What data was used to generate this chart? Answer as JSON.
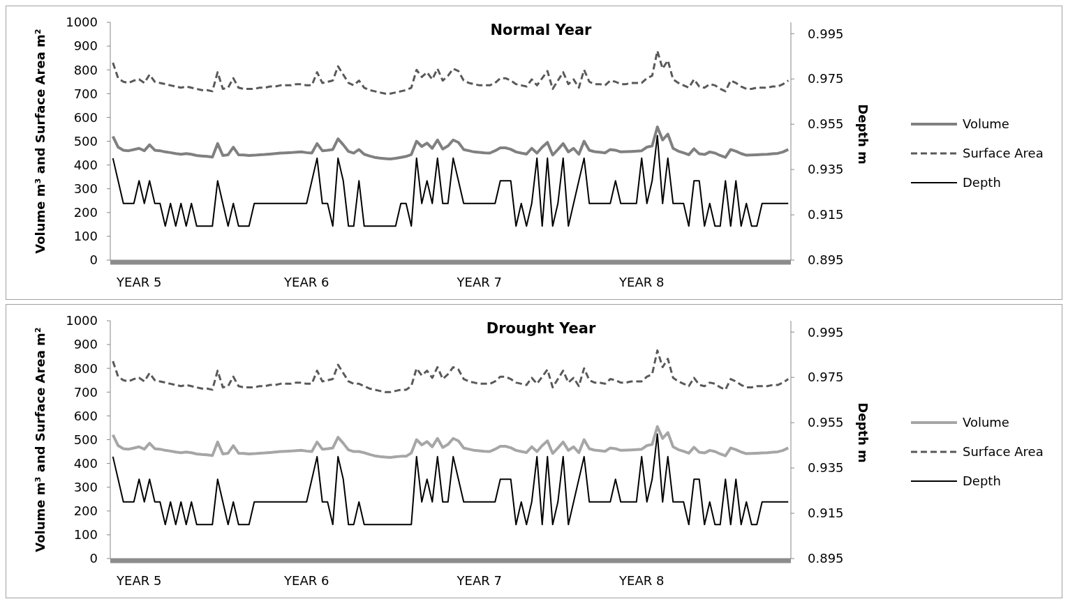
{
  "chart_data": [
    {
      "type": "line",
      "title": "Normal Year",
      "ylabel": "Volume m³ and Surface Area m²",
      "y2label": "Depth m",
      "ylim": [
        0,
        1000
      ],
      "yticks": [
        0,
        100,
        200,
        300,
        400,
        500,
        600,
        700,
        800,
        900,
        1000
      ],
      "y2lim": [
        0.895,
        1.0
      ],
      "y2ticks": [
        0.895,
        0.915,
        0.935,
        0.955,
        0.975,
        0.995
      ],
      "legend": "right",
      "categories": [
        null,
        null,
        null,
        null,
        null,
        "YEAR 5",
        null,
        null,
        null,
        null,
        null,
        null,
        null,
        null,
        null,
        null,
        null,
        null,
        null,
        null,
        null,
        null,
        null,
        null,
        null,
        null,
        null,
        null,
        null,
        null,
        null,
        null,
        null,
        null,
        null,
        null,
        null,
        "YEAR 6",
        null,
        null,
        null,
        null,
        null,
        null,
        null,
        null,
        null,
        null,
        null,
        null,
        null,
        null,
        null,
        null,
        null,
        null,
        null,
        null,
        null,
        null,
        null,
        null,
        null,
        null,
        null,
        null,
        null,
        null,
        null,
        null,
        "YEAR 7",
        null,
        null,
        null,
        null,
        null,
        null,
        null,
        null,
        null,
        null,
        null,
        null,
        null,
        null,
        null,
        null,
        null,
        null,
        null,
        null,
        null,
        null,
        null,
        null,
        null,
        null,
        null,
        null,
        null,
        null,
        "YEAR 8",
        null,
        null,
        null,
        null,
        null,
        null,
        null,
        null,
        null,
        null,
        null,
        null,
        null,
        null,
        null,
        null,
        null,
        null,
        null,
        null,
        null,
        null,
        null,
        null,
        null,
        null,
        null,
        null
      ],
      "series": [
        {
          "name": "Volume",
          "color": "#808080",
          "values": [
            520,
            475,
            462,
            460,
            465,
            470,
            460,
            485,
            462,
            460,
            455,
            452,
            448,
            445,
            448,
            445,
            440,
            438,
            436,
            433,
            490,
            440,
            443,
            475,
            443,
            442,
            440,
            441,
            443,
            444,
            446,
            448,
            450,
            451,
            452,
            454,
            455,
            452,
            450,
            490,
            460,
            462,
            465,
            510,
            485,
            457,
            450,
            465,
            445,
            438,
            432,
            429,
            427,
            425,
            428,
            432,
            436,
            444,
            500,
            478,
            492,
            470,
            505,
            467,
            480,
            505,
            495,
            465,
            460,
            455,
            453,
            451,
            450,
            460,
            472,
            472,
            466,
            455,
            450,
            446,
            470,
            450,
            475,
            495,
            442,
            465,
            490,
            455,
            470,
            445,
            500,
            462,
            456,
            454,
            451,
            465,
            462,
            455,
            456,
            457,
            458,
            460,
            475,
            480,
            560,
            505,
            530,
            470,
            458,
            451,
            443,
            468,
            447,
            444,
            455,
            450,
            440,
            432,
            465,
            458,
            448,
            441,
            442,
            443,
            444,
            445,
            447,
            449,
            455,
            465
          ]
        },
        {
          "name": "Surface Area",
          "color": "#595959",
          "line_style": "dashed",
          "values": [
            830,
            765,
            750,
            745,
            755,
            760,
            745,
            780,
            750,
            745,
            740,
            735,
            730,
            725,
            730,
            725,
            720,
            715,
            715,
            710,
            790,
            720,
            725,
            765,
            725,
            720,
            720,
            720,
            725,
            725,
            730,
            730,
            735,
            735,
            735,
            740,
            740,
            735,
            735,
            790,
            745,
            750,
            755,
            815,
            780,
            745,
            735,
            755,
            725,
            715,
            710,
            705,
            700,
            700,
            705,
            710,
            715,
            725,
            800,
            770,
            790,
            760,
            805,
            755,
            775,
            805,
            795,
            755,
            745,
            740,
            735,
            735,
            735,
            745,
            765,
            765,
            755,
            740,
            735,
            730,
            760,
            735,
            765,
            795,
            720,
            755,
            790,
            740,
            760,
            725,
            800,
            750,
            740,
            740,
            735,
            755,
            750,
            740,
            740,
            745,
            745,
            745,
            765,
            775,
            880,
            805,
            840,
            760,
            745,
            735,
            725,
            760,
            730,
            725,
            740,
            735,
            720,
            710,
            755,
            745,
            730,
            720,
            720,
            725,
            725,
            725,
            730,
            730,
            740,
            755
          ]
        },
        {
          "name": "Depth",
          "color": "#000000",
          "axis": "y2",
          "values": [
            0.94,
            0.93,
            0.92,
            0.92,
            0.92,
            0.93,
            0.92,
            0.93,
            0.92,
            0.92,
            0.91,
            0.92,
            0.91,
            0.92,
            0.91,
            0.92,
            0.91,
            0.91,
            0.91,
            0.91,
            0.93,
            0.92,
            0.91,
            0.92,
            0.91,
            0.91,
            0.91,
            0.92,
            0.92,
            0.92,
            0.92,
            0.92,
            0.92,
            0.92,
            0.92,
            0.92,
            0.92,
            0.92,
            0.93,
            0.94,
            0.92,
            0.92,
            0.91,
            0.94,
            0.93,
            0.91,
            0.91,
            0.93,
            0.91,
            0.91,
            0.91,
            0.91,
            0.91,
            0.91,
            0.91,
            0.92,
            0.92,
            0.91,
            0.94,
            0.92,
            0.93,
            0.92,
            0.94,
            0.92,
            0.92,
            0.94,
            0.93,
            0.92,
            0.92,
            0.92,
            0.92,
            0.92,
            0.92,
            0.92,
            0.93,
            0.93,
            0.93,
            0.91,
            0.92,
            0.91,
            0.92,
            0.94,
            0.91,
            0.94,
            0.91,
            0.92,
            0.94,
            0.91,
            0.92,
            0.93,
            0.94,
            0.92,
            0.92,
            0.92,
            0.92,
            0.92,
            0.93,
            0.92,
            0.92,
            0.92,
            0.92,
            0.94,
            0.92,
            0.93,
            0.95,
            0.92,
            0.94,
            0.92,
            0.92,
            0.92,
            0.91,
            0.93,
            0.93,
            0.91,
            0.92,
            0.91,
            0.91,
            0.93,
            0.91,
            0.93,
            0.91,
            0.92,
            0.91,
            0.91,
            0.92,
            0.92,
            0.92,
            0.92,
            0.92,
            0.92
          ]
        }
      ]
    },
    {
      "type": "line",
      "title": "Drought Year",
      "ylabel": "Volume m³ and Surface Area m²",
      "y2label": "Depth m",
      "ylim": [
        0,
        1000
      ],
      "yticks": [
        0,
        100,
        200,
        300,
        400,
        500,
        600,
        700,
        800,
        900,
        1000
      ],
      "y2lim": [
        0.895,
        1.0
      ],
      "y2ticks": [
        0.895,
        0.915,
        0.935,
        0.955,
        0.975,
        0.995
      ],
      "legend": "right",
      "categories": [
        null,
        null,
        null,
        null,
        null,
        "YEAR 5",
        null,
        null,
        null,
        null,
        null,
        null,
        null,
        null,
        null,
        null,
        null,
        null,
        null,
        null,
        null,
        null,
        null,
        null,
        null,
        null,
        null,
        null,
        null,
        null,
        null,
        null,
        null,
        null,
        null,
        null,
        null,
        "YEAR 6",
        null,
        null,
        null,
        null,
        null,
        null,
        null,
        null,
        null,
        null,
        null,
        null,
        null,
        null,
        null,
        null,
        null,
        null,
        null,
        null,
        null,
        null,
        null,
        null,
        null,
        null,
        null,
        null,
        null,
        null,
        null,
        null,
        "YEAR 7",
        null,
        null,
        null,
        null,
        null,
        null,
        null,
        null,
        null,
        null,
        null,
        null,
        null,
        null,
        null,
        null,
        null,
        null,
        null,
        null,
        null,
        null,
        null,
        null,
        null,
        null,
        null,
        null,
        null,
        null,
        "YEAR 8",
        null,
        null,
        null,
        null,
        null,
        null,
        null,
        null,
        null,
        null,
        null,
        null,
        null,
        null,
        null,
        null,
        null,
        null,
        null,
        null,
        null,
        null,
        null,
        null,
        null,
        null,
        null,
        null
      ],
      "series": [
        {
          "name": "Volume",
          "color": "#a6a6a6",
          "values": [
            520,
            475,
            462,
            460,
            465,
            470,
            460,
            485,
            462,
            460,
            455,
            452,
            448,
            445,
            448,
            445,
            440,
            438,
            436,
            433,
            490,
            440,
            443,
            475,
            443,
            442,
            440,
            441,
            443,
            444,
            446,
            448,
            450,
            451,
            452,
            454,
            455,
            452,
            450,
            490,
            460,
            462,
            465,
            510,
            485,
            457,
            450,
            450,
            445,
            438,
            432,
            429,
            427,
            425,
            428,
            430,
            430,
            444,
            500,
            478,
            492,
            470,
            505,
            467,
            480,
            505,
            495,
            465,
            460,
            455,
            453,
            451,
            450,
            460,
            472,
            472,
            466,
            455,
            450,
            446,
            470,
            450,
            475,
            495,
            442,
            465,
            490,
            455,
            470,
            445,
            500,
            462,
            456,
            454,
            451,
            465,
            462,
            455,
            456,
            457,
            458,
            460,
            475,
            480,
            555,
            505,
            530,
            470,
            458,
            451,
            443,
            468,
            447,
            444,
            455,
            450,
            440,
            432,
            465,
            458,
            448,
            441,
            442,
            443,
            444,
            445,
            447,
            449,
            455,
            465
          ]
        },
        {
          "name": "Surface Area",
          "color": "#595959",
          "line_style": "dashed",
          "values": [
            830,
            765,
            750,
            745,
            755,
            760,
            745,
            780,
            750,
            745,
            740,
            735,
            730,
            725,
            730,
            725,
            720,
            715,
            715,
            710,
            790,
            720,
            725,
            765,
            725,
            720,
            720,
            720,
            725,
            725,
            730,
            730,
            735,
            735,
            735,
            740,
            740,
            735,
            735,
            790,
            745,
            750,
            755,
            815,
            780,
            745,
            735,
            735,
            725,
            715,
            710,
            705,
            700,
            700,
            705,
            710,
            710,
            725,
            800,
            770,
            790,
            760,
            805,
            755,
            775,
            805,
            795,
            755,
            745,
            740,
            735,
            735,
            735,
            745,
            765,
            765,
            755,
            740,
            735,
            730,
            760,
            735,
            765,
            795,
            720,
            755,
            790,
            740,
            760,
            725,
            800,
            750,
            740,
            740,
            735,
            755,
            750,
            740,
            740,
            745,
            745,
            745,
            765,
            775,
            875,
            805,
            840,
            760,
            745,
            735,
            725,
            760,
            730,
            725,
            740,
            735,
            720,
            710,
            755,
            745,
            730,
            720,
            720,
            725,
            725,
            725,
            730,
            730,
            740,
            755
          ]
        },
        {
          "name": "Depth",
          "color": "#000000",
          "axis": "y2",
          "values": [
            0.94,
            0.93,
            0.92,
            0.92,
            0.92,
            0.93,
            0.92,
            0.93,
            0.92,
            0.92,
            0.91,
            0.92,
            0.91,
            0.92,
            0.91,
            0.92,
            0.91,
            0.91,
            0.91,
            0.91,
            0.93,
            0.92,
            0.91,
            0.92,
            0.91,
            0.91,
            0.91,
            0.92,
            0.92,
            0.92,
            0.92,
            0.92,
            0.92,
            0.92,
            0.92,
            0.92,
            0.92,
            0.92,
            0.93,
            0.94,
            0.92,
            0.92,
            0.91,
            0.94,
            0.93,
            0.91,
            0.91,
            0.92,
            0.91,
            0.91,
            0.91,
            0.91,
            0.91,
            0.91,
            0.91,
            0.91,
            0.91,
            0.91,
            0.94,
            0.92,
            0.93,
            0.92,
            0.94,
            0.92,
            0.92,
            0.94,
            0.93,
            0.92,
            0.92,
            0.92,
            0.92,
            0.92,
            0.92,
            0.92,
            0.93,
            0.93,
            0.93,
            0.91,
            0.92,
            0.91,
            0.92,
            0.94,
            0.91,
            0.94,
            0.91,
            0.92,
            0.94,
            0.91,
            0.92,
            0.93,
            0.94,
            0.92,
            0.92,
            0.92,
            0.92,
            0.92,
            0.93,
            0.92,
            0.92,
            0.92,
            0.92,
            0.94,
            0.92,
            0.93,
            0.95,
            0.92,
            0.94,
            0.92,
            0.92,
            0.92,
            0.91,
            0.93,
            0.93,
            0.91,
            0.92,
            0.91,
            0.91,
            0.93,
            0.91,
            0.93,
            0.91,
            0.92,
            0.91,
            0.91,
            0.92,
            0.92,
            0.92,
            0.92,
            0.92,
            0.92
          ]
        }
      ]
    }
  ]
}
